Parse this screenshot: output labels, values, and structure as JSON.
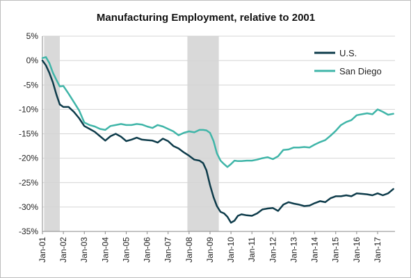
{
  "chart_data": {
    "type": "line",
    "title": "Manufacturing Employment, relative to 2001",
    "xlabel": "",
    "ylabel": "",
    "ylim": [
      -35,
      5
    ],
    "yticks": [
      "5%",
      "0%",
      "-5%",
      "-10%",
      "-15%",
      "-20%",
      "-25%",
      "-30%",
      "-35%"
    ],
    "yticks_values": [
      5,
      0,
      -5,
      -10,
      -15,
      -20,
      -25,
      -30,
      -35
    ],
    "xlim": [
      2001.0,
      2017.83
    ],
    "xticks": [
      "Jan-01",
      "Jan-02",
      "Jan-03",
      "Jan-04",
      "Jan-05",
      "Jan-06",
      "Jan-07",
      "Jan-08",
      "Jan-09",
      "Jan-10",
      "Jan-11",
      "Jan-12",
      "Jan-13",
      "Jan-14",
      "Jan-15",
      "Jan-16",
      "Jan-17"
    ],
    "xticks_values": [
      2001,
      2002,
      2003,
      2004,
      2005,
      2006,
      2007,
      2008,
      2009,
      2010,
      2011,
      2012,
      2013,
      2014,
      2015,
      2016,
      2017
    ],
    "grid": true,
    "legend": "top-right",
    "recessions": [
      [
        2001.08,
        2001.83
      ],
      [
        2007.92,
        2009.42
      ]
    ],
    "series": [
      {
        "name": "U.S.",
        "color": "#0d3b4a",
        "x": [
          2001.0,
          2001.17,
          2001.33,
          2001.5,
          2001.67,
          2001.83,
          2002.0,
          2002.25,
          2002.5,
          2002.75,
          2003.0,
          2003.25,
          2003.5,
          2003.75,
          2004.0,
          2004.25,
          2004.5,
          2004.75,
          2005.0,
          2005.25,
          2005.5,
          2005.75,
          2006.0,
          2006.25,
          2006.5,
          2006.75,
          2007.0,
          2007.25,
          2007.5,
          2007.75,
          2008.0,
          2008.25,
          2008.5,
          2008.67,
          2008.83,
          2009.0,
          2009.17,
          2009.33,
          2009.5,
          2009.67,
          2009.83,
          2010.0,
          2010.17,
          2010.33,
          2010.5,
          2010.75,
          2011.0,
          2011.25,
          2011.5,
          2011.75,
          2012.0,
          2012.25,
          2012.5,
          2012.75,
          2013.0,
          2013.25,
          2013.5,
          2013.75,
          2014.0,
          2014.25,
          2014.5,
          2014.75,
          2015.0,
          2015.25,
          2015.5,
          2015.75,
          2016.0,
          2016.25,
          2016.5,
          2016.75,
          2017.0,
          2017.25,
          2017.5,
          2017.75
        ],
        "values": [
          0,
          -1,
          -2.5,
          -4.5,
          -7,
          -9,
          -9.5,
          -9.5,
          -10.5,
          -11.8,
          -13.4,
          -14,
          -14.6,
          -15.5,
          -16.4,
          -15.5,
          -15,
          -15.6,
          -16.5,
          -16.2,
          -15.8,
          -16.2,
          -16.3,
          -16.4,
          -16.8,
          -16,
          -16.5,
          -17.5,
          -18,
          -18.8,
          -19.5,
          -20.3,
          -20.5,
          -21,
          -22.5,
          -25.5,
          -28,
          -29.8,
          -31,
          -31.3,
          -32,
          -33.2,
          -32.8,
          -31.8,
          -31.5,
          -31.7,
          -31.8,
          -31.3,
          -30.5,
          -30.3,
          -30.2,
          -30.8,
          -29.5,
          -29,
          -29.3,
          -29.5,
          -29.8,
          -29.7,
          -29.2,
          -28.8,
          -29,
          -28.2,
          -27.8,
          -27.8,
          -27.6,
          -27.8,
          -27.2,
          -27.3,
          -27.4,
          -27.6,
          -27.2,
          -27.6,
          -27.2,
          -26.3
        ]
      },
      {
        "name": "San Diego",
        "color": "#3fb5a8",
        "x": [
          2001.0,
          2001.17,
          2001.33,
          2001.5,
          2001.67,
          2001.83,
          2002.0,
          2002.25,
          2002.5,
          2002.75,
          2003.0,
          2003.25,
          2003.5,
          2003.75,
          2004.0,
          2004.25,
          2004.5,
          2004.75,
          2005.0,
          2005.25,
          2005.5,
          2005.75,
          2006.0,
          2006.25,
          2006.5,
          2006.75,
          2007.0,
          2007.25,
          2007.5,
          2007.75,
          2008.0,
          2008.25,
          2008.5,
          2008.67,
          2008.83,
          2009.0,
          2009.17,
          2009.33,
          2009.5,
          2009.67,
          2009.83,
          2010.0,
          2010.17,
          2010.33,
          2010.5,
          2010.75,
          2011.0,
          2011.25,
          2011.5,
          2011.75,
          2012.0,
          2012.25,
          2012.5,
          2012.75,
          2013.0,
          2013.25,
          2013.5,
          2013.75,
          2014.0,
          2014.25,
          2014.5,
          2014.75,
          2015.0,
          2015.25,
          2015.5,
          2015.75,
          2016.0,
          2016.25,
          2016.5,
          2016.75,
          2017.0,
          2017.25,
          2017.5,
          2017.75
        ],
        "values": [
          0.5,
          0.7,
          -0.5,
          -2.5,
          -4,
          -5.3,
          -5.2,
          -6.8,
          -8.5,
          -10.2,
          -12.7,
          -13.2,
          -13.5,
          -14,
          -14.2,
          -13.4,
          -13.2,
          -13,
          -13.2,
          -13.2,
          -13,
          -13.1,
          -13.5,
          -13.8,
          -13.2,
          -13.5,
          -14,
          -14.5,
          -15.3,
          -14.8,
          -14.5,
          -14.7,
          -14.2,
          -14.2,
          -14.3,
          -14.8,
          -16.5,
          -19,
          -20.5,
          -21.2,
          -21.8,
          -21.2,
          -20.5,
          -20.6,
          -20.6,
          -20.5,
          -20.5,
          -20.3,
          -20,
          -19.8,
          -20.2,
          -19.6,
          -18.3,
          -18.2,
          -17.8,
          -17.8,
          -17.7,
          -17.8,
          -17.2,
          -16.7,
          -16.3,
          -15.4,
          -14.4,
          -13.2,
          -12.6,
          -12.2,
          -11.2,
          -11,
          -10.8,
          -11,
          -10,
          -10.5,
          -11.1,
          -10.9
        ]
      }
    ]
  }
}
